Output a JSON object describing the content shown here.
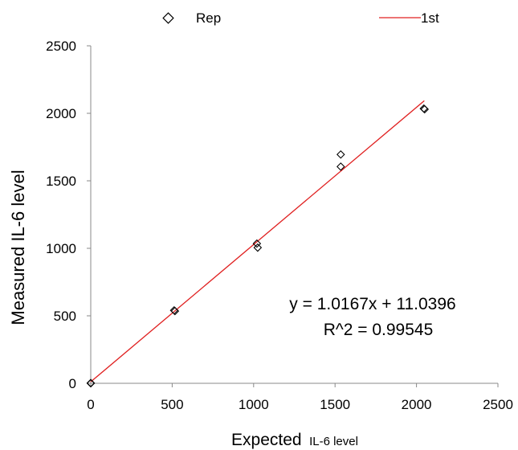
{
  "chart_data": {
    "type": "scatter",
    "xlabel_main": "Expected",
    "xlabel_sub": "IL-6 level",
    "ylabel": "Measured IL-6 level",
    "xlim": [
      0,
      2500
    ],
    "ylim": [
      0,
      2500
    ],
    "x_ticks": [
      0,
      500,
      1000,
      1500,
      2000,
      2500
    ],
    "y_ticks": [
      0,
      500,
      1000,
      1500,
      2000,
      2500
    ],
    "grid": false,
    "legend_position": "top",
    "series": [
      {
        "name": "Rep",
        "marker": "diamond-open",
        "color": "#000000",
        "points": [
          [
            0,
            0
          ],
          [
            0,
            2
          ],
          [
            512,
            540
          ],
          [
            517,
            535
          ],
          [
            1020,
            1035
          ],
          [
            1025,
            1005
          ],
          [
            1535,
            1695
          ],
          [
            1535,
            1605
          ],
          [
            2045,
            2035
          ],
          [
            2050,
            2030
          ]
        ]
      },
      {
        "name": "1st",
        "type": "line",
        "color": "#e02020",
        "x": [
          0,
          2048
        ],
        "y": [
          11.0396,
          2093.2
        ]
      }
    ],
    "annotations": [
      "y = 1.0167x + 11.0396",
      "R^2 = 0.99545"
    ]
  }
}
